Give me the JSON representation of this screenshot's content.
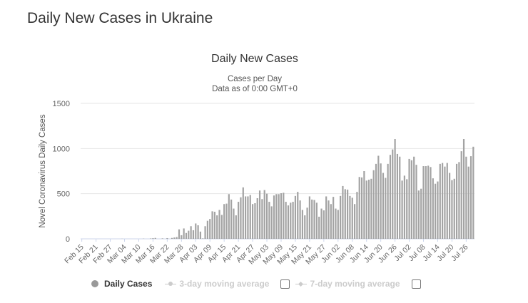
{
  "page": {
    "title": "Daily New Cases in Ukraine"
  },
  "legend": {
    "daily_cases": "Daily Cases",
    "avg3": "3-day moving average",
    "avg7": "7-day moving average"
  },
  "colors": {
    "bar": "#a3a3a3",
    "grid": "#e6e6e6",
    "axis": "#ccd6eb",
    "text": "#333333"
  },
  "chart_data": {
    "type": "bar",
    "title": "Daily New Cases",
    "subtitle_lines": [
      "Cases per Day",
      "Data as of 0:00 GMT+0"
    ],
    "xlabel": "",
    "ylabel": "Novel Coronavirus Daily Cases",
    "ylim": [
      0,
      1500
    ],
    "yticks": [
      0,
      500,
      1000,
      1500
    ],
    "x_start": "Feb 15",
    "x_end": "Jul 29",
    "xtick_every_days": 6,
    "xtick_labels": [
      "Feb 15",
      "Feb 21",
      "Feb 27",
      "Mar 04",
      "Mar 10",
      "Mar 16",
      "Mar 22",
      "Mar 28",
      "Apr 03",
      "Apr 09",
      "Apr 15",
      "Apr 21",
      "Apr 27",
      "May 03",
      "May 09",
      "May 15",
      "May 21",
      "May 27",
      "Jun 02",
      "Jun 08",
      "Jun 14",
      "Jun 20",
      "Jun 26",
      "Jul 02",
      "Jul 08",
      "Jul 14",
      "Jul 20",
      "Jul 26"
    ],
    "grid": true,
    "legend_position": "bottom",
    "series": [
      {
        "name": "Daily Cases",
        "values": [
          0,
          0,
          0,
          0,
          0,
          0,
          0,
          0,
          0,
          0,
          0,
          0,
          0,
          0,
          0,
          0,
          0,
          1,
          0,
          0,
          0,
          0,
          0,
          0,
          0,
          0,
          2,
          0,
          0,
          4,
          7,
          10,
          0,
          0,
          5,
          0,
          8,
          0,
          10,
          15,
          20,
          105,
          40,
          115,
          65,
          90,
          140,
          95,
          170,
          150,
          80,
          5,
          140,
          200,
          220,
          305,
          300,
          260,
          320,
          265,
          385,
          390,
          495,
          435,
          335,
          260,
          410,
          460,
          570,
          470,
          470,
          485,
          385,
          395,
          450,
          535,
          440,
          540,
          500,
          410,
          360,
          480,
          495,
          495,
          505,
          510,
          410,
          370,
          400,
          410,
          475,
          520,
          425,
          320,
          260,
          345,
          470,
          435,
          430,
          400,
          245,
          335,
          315,
          470,
          425,
          385,
          465,
          335,
          320,
          475,
          585,
          550,
          545,
          475,
          455,
          385,
          520,
          685,
          680,
          750,
          645,
          655,
          665,
          760,
          830,
          920,
          835,
          730,
          675,
          830,
          930,
          990,
          1105,
          940,
          910,
          645,
          700,
          660,
          885,
          870,
          910,
          820,
          535,
          555,
          805,
          805,
          810,
          795,
          670,
          610,
          635,
          830,
          840,
          800,
          840,
          730,
          650,
          665,
          830,
          850,
          970,
          1105,
          910,
          800,
          915,
          1020
        ]
      }
    ]
  }
}
